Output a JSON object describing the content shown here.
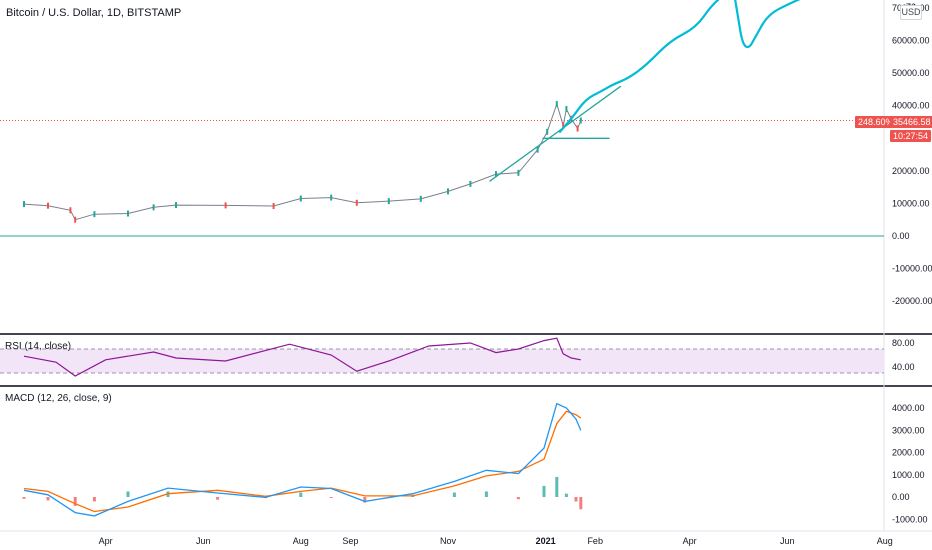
{
  "header": {
    "symbol_title": "Bitcoin / U.S. Dollar, 1D, BITSTAMP",
    "currency_badge": "USD"
  },
  "price_scale": {
    "labels": [
      "70000.00",
      "60000.00",
      "50000.00",
      "40000.00",
      "30000.00",
      "20000.00",
      "10000.00",
      "0.00",
      "-10000.00",
      "-20000.00"
    ],
    "top_cut_label": "70",
    "last_price": "35466.58",
    "percent_change": "248.60%",
    "countdown": "10:27:54",
    "pill_color": "#ef5350"
  },
  "rsi_panel": {
    "title": "RSI (14, close)",
    "labels": [
      "80.00",
      "40.00"
    ],
    "upper_band": 70,
    "lower_band": 30,
    "line_color": "#8e1599",
    "fill_color": "#f3e5f8"
  },
  "macd_panel": {
    "title": "MACD (12, 26, close, 9)",
    "labels": [
      "4000.00",
      "3000.00",
      "2000.00",
      "1000.00",
      "0.00",
      "-1000.00"
    ],
    "macd_color": "#2196f3",
    "signal_color": "#ff6d00",
    "hist_up_color": "#26a69a",
    "hist_down_color": "#ef5350"
  },
  "time_axis": {
    "labels": [
      "Apr",
      "Jun",
      "Aug",
      "Sep",
      "Nov",
      "2021",
      "Feb",
      "Apr",
      "Jun",
      "Aug"
    ]
  },
  "chart_data": {
    "type": "line",
    "symbol": "BTCUSD",
    "interval": "1D",
    "ylim": [
      -28000,
      71000
    ],
    "price_path": [
      {
        "date": "2020-02-10",
        "close": 9800
      },
      {
        "date": "2020-02-25",
        "close": 9300
      },
      {
        "date": "2020-03-10",
        "close": 7900
      },
      {
        "date": "2020-03-13",
        "close": 5000
      },
      {
        "date": "2020-03-25",
        "close": 6700
      },
      {
        "date": "2020-04-15",
        "close": 6900
      },
      {
        "date": "2020-05-01",
        "close": 8800
      },
      {
        "date": "2020-05-15",
        "close": 9500
      },
      {
        "date": "2020-06-15",
        "close": 9400
      },
      {
        "date": "2020-07-15",
        "close": 9200
      },
      {
        "date": "2020-08-01",
        "close": 11500
      },
      {
        "date": "2020-08-20",
        "close": 11800
      },
      {
        "date": "2020-09-05",
        "close": 10200
      },
      {
        "date": "2020-09-25",
        "close": 10700
      },
      {
        "date": "2020-10-15",
        "close": 11400
      },
      {
        "date": "2020-11-01",
        "close": 13700
      },
      {
        "date": "2020-11-15",
        "close": 16000
      },
      {
        "date": "2020-12-01",
        "close": 19000
      },
      {
        "date": "2020-12-15",
        "close": 19400
      },
      {
        "date": "2020-12-27",
        "close": 26500
      },
      {
        "date": "2021-01-02",
        "close": 32000
      },
      {
        "date": "2021-01-08",
        "close": 40500
      },
      {
        "date": "2021-01-12",
        "close": 34000
      },
      {
        "date": "2021-01-14",
        "close": 39000
      },
      {
        "date": "2021-01-17",
        "close": 36000
      },
      {
        "date": "2021-01-21",
        "close": 33000
      },
      {
        "date": "2021-01-23",
        "close": 35466.58
      }
    ],
    "horizontal_lines": [
      {
        "name": "level-zero",
        "price": 0
      },
      {
        "name": "level-last-price",
        "price": 35466.58
      }
    ],
    "drawn_trendline": [
      {
        "date": "2020-11-27",
        "price": 16800
      },
      {
        "date": "2021-02-17",
        "price": 46000
      }
    ],
    "drawn_support": [
      {
        "date": "2020-12-30",
        "price": 30000
      },
      {
        "date": "2021-02-10",
        "price": 30000
      }
    ],
    "projection_path": [
      {
        "date": "2021-01-10",
        "price": 32000
      },
      {
        "date": "2021-01-18",
        "price": 36500
      },
      {
        "date": "2021-01-26",
        "price": 42000
      },
      {
        "date": "2021-02-05",
        "price": 44500
      },
      {
        "date": "2021-02-12",
        "price": 46500
      },
      {
        "date": "2021-02-22",
        "price": 48500
      },
      {
        "date": "2021-03-05",
        "price": 52500
      },
      {
        "date": "2021-03-20",
        "price": 60000
      },
      {
        "date": "2021-04-05",
        "price": 64000
      },
      {
        "date": "2021-04-15",
        "price": 71000
      },
      {
        "date": "2021-04-25",
        "price": 75000
      }
    ],
    "projection_dip": [
      {
        "date": "2021-04-29",
        "price": 74000
      },
      {
        "date": "2021-05-01",
        "price": 68000
      },
      {
        "date": "2021-05-04",
        "price": 59000
      },
      {
        "date": "2021-05-08",
        "price": 57500
      },
      {
        "date": "2021-05-12",
        "price": 61000
      },
      {
        "date": "2021-05-20",
        "price": 68000
      },
      {
        "date": "2021-06-03",
        "price": 71500
      },
      {
        "date": "2021-06-15",
        "price": 74000
      }
    ],
    "rsi": [
      {
        "date": "2020-02-10",
        "value": 58
      },
      {
        "date": "2020-03-01",
        "value": 48
      },
      {
        "date": "2020-03-13",
        "value": 25
      },
      {
        "date": "2020-04-01",
        "value": 52
      },
      {
        "date": "2020-05-01",
        "value": 65
      },
      {
        "date": "2020-05-15",
        "value": 55
      },
      {
        "date": "2020-06-15",
        "value": 50
      },
      {
        "date": "2020-07-25",
        "value": 78
      },
      {
        "date": "2020-08-20",
        "value": 60
      },
      {
        "date": "2020-09-05",
        "value": 33
      },
      {
        "date": "2020-09-25",
        "value": 50
      },
      {
        "date": "2020-10-20",
        "value": 75
      },
      {
        "date": "2020-11-15",
        "value": 80
      },
      {
        "date": "2020-12-01",
        "value": 64
      },
      {
        "date": "2020-12-15",
        "value": 70
      },
      {
        "date": "2020-12-31",
        "value": 84
      },
      {
        "date": "2021-01-08",
        "value": 88
      },
      {
        "date": "2021-01-12",
        "value": 62
      },
      {
        "date": "2021-01-17",
        "value": 55
      },
      {
        "date": "2021-01-23",
        "value": 52
      }
    ],
    "macd": [
      {
        "date": "2020-02-10",
        "macd": 300,
        "signal": 380,
        "hist": -80
      },
      {
        "date": "2020-02-25",
        "macd": 100,
        "signal": 250,
        "hist": -150
      },
      {
        "date": "2020-03-13",
        "macd": -700,
        "signal": -300,
        "hist": -400
      },
      {
        "date": "2020-03-25",
        "macd": -850,
        "signal": -650,
        "hist": -200
      },
      {
        "date": "2020-04-15",
        "macd": -200,
        "signal": -450,
        "hist": 250
      },
      {
        "date": "2020-05-10",
        "macd": 400,
        "signal": 150,
        "hist": 250
      },
      {
        "date": "2020-06-10",
        "macd": 180,
        "signal": 300,
        "hist": -120
      },
      {
        "date": "2020-07-10",
        "macd": -20,
        "signal": 30,
        "hist": -50
      },
      {
        "date": "2020-08-01",
        "macd": 450,
        "signal": 250,
        "hist": 200
      },
      {
        "date": "2020-08-20",
        "macd": 380,
        "signal": 400,
        "hist": -20
      },
      {
        "date": "2020-09-10",
        "macd": -200,
        "signal": 50,
        "hist": -250
      },
      {
        "date": "2020-10-10",
        "macd": 150,
        "signal": 50,
        "hist": 100
      },
      {
        "date": "2020-11-05",
        "macd": 700,
        "signal": 500,
        "hist": 200
      },
      {
        "date": "2020-11-25",
        "macd": 1200,
        "signal": 950,
        "hist": 250
      },
      {
        "date": "2020-12-15",
        "macd": 1050,
        "signal": 1150,
        "hist": -100
      },
      {
        "date": "2020-12-31",
        "macd": 2200,
        "signal": 1700,
        "hist": 500
      },
      {
        "date": "2021-01-08",
        "macd": 4200,
        "signal": 3300,
        "hist": 900
      },
      {
        "date": "2021-01-14",
        "macd": 4000,
        "signal": 3850,
        "hist": 150
      },
      {
        "date": "2021-01-20",
        "macd": 3500,
        "signal": 3700,
        "hist": -200
      },
      {
        "date": "2021-01-23",
        "macd": 3000,
        "signal": 3550,
        "hist": -550
      }
    ]
  }
}
